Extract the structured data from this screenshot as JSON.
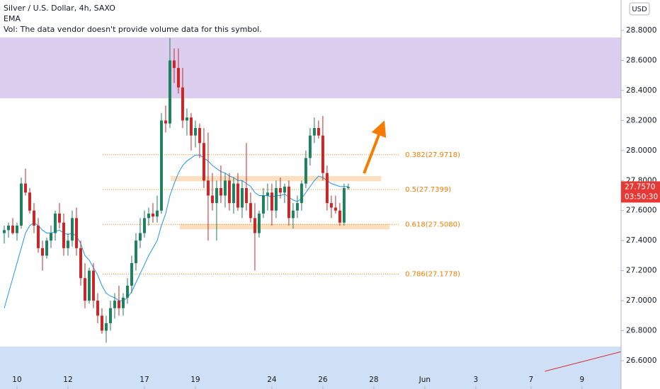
{
  "chart_data": {
    "type": "candlestick",
    "title": "Silver / U.S. Dollar, 4h, SAXO",
    "indicator": "EMA",
    "volume_note": "Vol: The data vendor doesn't provide volume data for this symbol.",
    "currency": "USD",
    "up_color": "#1f7f5e",
    "down_color": "#c62828",
    "ema_color": "#2196f3",
    "x": [
      -3,
      -2,
      -1,
      0,
      1,
      2,
      3,
      4,
      5,
      6,
      7,
      8,
      9,
      10,
      11,
      12,
      13,
      14,
      15,
      16,
      17,
      18,
      19,
      20,
      21,
      22,
      23,
      24,
      25,
      26,
      27,
      28,
      29,
      30,
      31,
      32,
      33,
      34,
      35,
      36,
      37,
      38,
      39,
      40,
      41,
      42,
      43,
      44,
      45,
      46,
      47,
      48,
      49,
      50,
      51,
      52,
      53,
      54,
      55,
      56,
      57,
      58,
      59,
      60,
      61,
      62,
      63,
      64,
      65,
      66,
      67,
      68,
      69,
      70,
      71,
      72,
      73,
      74,
      75,
      76,
      77,
      78
    ],
    "open": [
      27.45,
      27.47,
      27.5,
      27.45,
      27.5,
      27.78,
      27.72,
      27.6,
      27.5,
      27.35,
      27.3,
      27.4,
      27.45,
      27.58,
      27.52,
      27.35,
      27.4,
      27.55,
      27.35,
      27.15,
      27.0,
      27.2,
      27.0,
      26.9,
      26.8,
      26.85,
      26.95,
      27.0,
      26.95,
      27.02,
      27.1,
      27.25,
      27.4,
      27.45,
      27.55,
      27.58,
      27.56,
      27.6,
      28.2,
      28.18,
      28.6,
      28.55,
      28.42,
      28.2,
      28.22,
      28.1,
      28.15,
      28.05,
      27.8,
      27.7,
      27.65,
      27.75,
      27.7,
      27.8,
      27.65,
      27.78,
      27.62,
      27.75,
      27.65,
      27.55,
      27.45,
      27.58,
      27.7,
      27.72,
      27.6,
      27.75,
      27.72,
      27.76,
      27.55,
      27.6,
      27.65,
      27.78,
      27.95,
      28.1,
      28.15,
      28.1,
      27.85,
      27.65,
      27.62,
      27.6,
      27.52,
      27.75
    ],
    "high": [
      27.5,
      27.52,
      27.55,
      27.52,
      27.82,
      27.88,
      27.75,
      27.65,
      27.55,
      27.4,
      27.42,
      27.5,
      27.6,
      27.65,
      27.58,
      27.45,
      27.6,
      27.62,
      27.4,
      27.25,
      27.22,
      27.25,
      27.05,
      26.95,
      26.9,
      27.0,
      27.05,
      27.1,
      27.05,
      27.15,
      27.3,
      27.45,
      27.55,
      27.6,
      27.62,
      27.65,
      27.7,
      28.25,
      28.3,
      28.75,
      28.68,
      28.68,
      28.55,
      28.28,
      28.25,
      28.2,
      28.18,
      28.15,
      28.12,
      27.85,
      27.8,
      27.9,
      27.85,
      27.85,
      27.82,
      27.85,
      27.8,
      28.05,
      27.72,
      27.65,
      27.6,
      27.75,
      27.78,
      27.78,
      27.8,
      27.82,
      27.78,
      27.8,
      27.65,
      27.7,
      27.8,
      28.0,
      28.15,
      28.22,
      28.2,
      28.23,
      27.9,
      27.7,
      27.7,
      27.65,
      27.78,
      27.78
    ],
    "low": [
      27.38,
      27.42,
      27.44,
      27.4,
      27.48,
      27.7,
      27.58,
      27.45,
      27.32,
      27.2,
      27.28,
      27.35,
      27.4,
      27.48,
      27.3,
      27.3,
      27.36,
      27.3,
      27.1,
      26.95,
      26.98,
      26.95,
      26.85,
      26.78,
      26.72,
      26.8,
      26.88,
      26.9,
      26.9,
      26.98,
      27.05,
      27.2,
      27.35,
      27.42,
      27.5,
      27.52,
      27.52,
      27.58,
      28.12,
      28.15,
      28.45,
      28.38,
      28.15,
      28.1,
      28.0,
      28.02,
      27.95,
      27.75,
      27.4,
      27.6,
      27.4,
      27.65,
      27.62,
      27.6,
      27.58,
      27.6,
      27.55,
      27.6,
      27.52,
      27.2,
      27.42,
      27.55,
      27.6,
      27.5,
      27.55,
      27.68,
      27.65,
      27.5,
      27.48,
      27.55,
      27.6,
      27.75,
      27.9,
      28.05,
      28.08,
      27.8,
      27.6,
      27.55,
      27.58,
      27.5,
      27.5,
      27.74
    ],
    "close": [
      27.47,
      27.5,
      27.45,
      27.5,
      27.78,
      27.72,
      27.6,
      27.5,
      27.35,
      27.3,
      27.4,
      27.45,
      27.58,
      27.52,
      27.35,
      27.4,
      27.55,
      27.35,
      27.15,
      27.0,
      27.2,
      27.0,
      26.9,
      26.8,
      26.85,
      26.95,
      27.0,
      26.95,
      27.02,
      27.1,
      27.25,
      27.4,
      27.45,
      27.55,
      27.58,
      27.56,
      27.6,
      28.2,
      28.18,
      28.6,
      28.55,
      28.42,
      28.2,
      28.22,
      28.1,
      28.15,
      28.05,
      27.8,
      27.7,
      27.65,
      27.75,
      27.7,
      27.8,
      27.65,
      27.78,
      27.62,
      27.75,
      27.65,
      27.55,
      27.45,
      27.58,
      27.7,
      27.72,
      27.6,
      27.75,
      27.72,
      27.76,
      27.55,
      27.6,
      27.65,
      27.78,
      27.95,
      28.1,
      28.15,
      28.1,
      27.85,
      27.65,
      27.62,
      27.6,
      27.52,
      27.75,
      27.757
    ],
    "ema": [
      26.95,
      27.05,
      27.15,
      27.25,
      27.35,
      27.45,
      27.5,
      27.52,
      27.5,
      27.47,
      27.45,
      27.45,
      27.46,
      27.47,
      27.45,
      27.44,
      27.45,
      27.43,
      27.38,
      27.3,
      27.27,
      27.22,
      27.17,
      27.1,
      27.05,
      27.03,
      27.02,
      27.0,
      27.0,
      27.02,
      27.06,
      27.12,
      27.18,
      27.24,
      27.3,
      27.35,
      27.4,
      27.5,
      27.58,
      27.7,
      27.78,
      27.85,
      27.9,
      27.93,
      27.95,
      27.97,
      27.97,
      27.95,
      27.93,
      27.9,
      27.88,
      27.86,
      27.85,
      27.83,
      27.82,
      27.8,
      27.8,
      27.78,
      27.76,
      27.72,
      27.7,
      27.7,
      27.7,
      27.69,
      27.7,
      27.7,
      27.71,
      27.69,
      27.67,
      27.66,
      27.68,
      27.72,
      27.76,
      27.8,
      27.83,
      27.82,
      27.8,
      27.78,
      27.77,
      27.76,
      27.76,
      27.76
    ],
    "xlim": [
      -4,
      142.2
    ],
    "ylim": [
      26.4116,
      29.0026
    ],
    "xticks": [
      {
        "value": 0,
        "label": "10"
      },
      {
        "value": 12,
        "label": "12"
      },
      {
        "value": 30,
        "label": "17"
      },
      {
        "value": 42,
        "label": "19"
      },
      {
        "value": 60,
        "label": "24"
      },
      {
        "value": 72,
        "label": "26"
      },
      {
        "value": 84,
        "label": "28"
      },
      {
        "value": 96,
        "label": "Jun"
      },
      {
        "value": 108,
        "label": "3"
      },
      {
        "value": 121,
        "label": "7"
      },
      {
        "value": 133,
        "label": "9"
      }
    ],
    "yticks": [
      {
        "value": 26.6,
        "label": "26.6000"
      },
      {
        "value": 26.8,
        "label": "26.8000"
      },
      {
        "value": 27.0,
        "label": "27.0000"
      },
      {
        "value": 27.2,
        "label": "27.2000"
      },
      {
        "value": 27.4,
        "label": "27.4000"
      },
      {
        "value": 27.6,
        "label": "27.6000"
      },
      {
        "value": 27.8,
        "label": "27.8000"
      },
      {
        "value": 28.0,
        "label": "28.0000"
      },
      {
        "value": 28.2,
        "label": "28.2000"
      },
      {
        "value": 28.4,
        "label": "28.4000"
      },
      {
        "value": 28.6,
        "label": "28.6000"
      },
      {
        "value": 28.8,
        "label": "28.8000"
      }
    ],
    "last_price": {
      "value": 27.757,
      "label": "27.7570",
      "countdown": "03:50:30"
    },
    "fib_levels": [
      {
        "value": 27.9718,
        "label": "0.382(27.9718)"
      },
      {
        "value": 27.7399,
        "label": "0.5(27.7399)"
      },
      {
        "value": 27.508,
        "label": "0.618(27.5080)"
      },
      {
        "value": 27.1778,
        "label": "0.786(27.1778)"
      }
    ],
    "fib_x": [
      20.2,
      90.2
    ],
    "zones": [
      {
        "from": 28.348,
        "to": 28.753,
        "color": "#d7c9ec"
      },
      {
        "from": 26.4116,
        "to": 26.694,
        "color": "#c9dbf5"
      }
    ],
    "boxes": [
      {
        "x": [
          36.2,
          85.7
        ],
        "from": 27.795,
        "to": 27.83,
        "color": "#fbd9b4"
      },
      {
        "x": [
          38.3,
          87.7
        ],
        "from": 27.475,
        "to": 27.51,
        "color": "#fbd9b4"
      }
    ],
    "arrow": {
      "x": [
        81.7,
        86.5
      ],
      "y": [
        27.848,
        28.2
      ],
      "color": "#f57c00"
    },
    "trendline": {
      "x": [
        124.3,
        142.2
      ],
      "y": [
        26.53,
        26.66
      ],
      "color": "#d32f2f"
    }
  }
}
